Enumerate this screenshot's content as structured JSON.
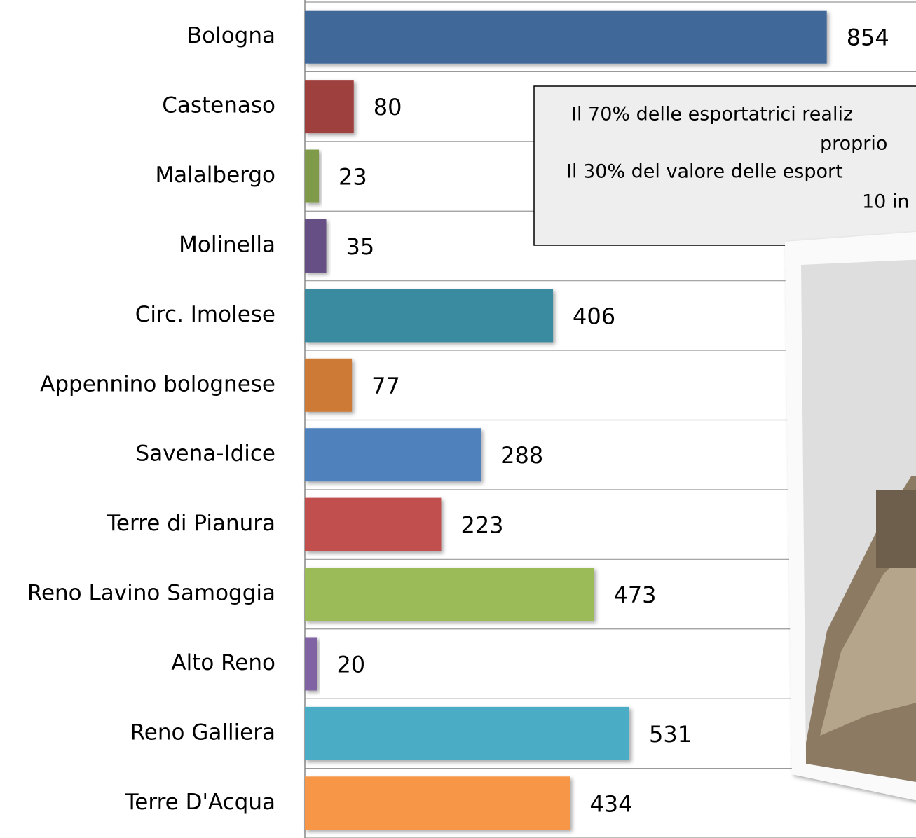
{
  "chart_data": {
    "type": "bar",
    "orientation": "horizontal",
    "categories": [
      "Bologna",
      "Castenaso",
      "Malalbergo",
      "Molinella",
      "Circ. Imolese",
      "Appennino bolognese",
      "Savena-Idice",
      "Terre di Pianura",
      "Reno Lavino Samoggia",
      "Alto Reno",
      "Reno Galliera",
      "Terre D'Acqua"
    ],
    "values": [
      854,
      80,
      23,
      35,
      406,
      77,
      288,
      223,
      473,
      20,
      531,
      434
    ],
    "colors": [
      "#41699a",
      "#9e413e",
      "#7f9a48",
      "#664f84",
      "#3a8ba0",
      "#cc7a36",
      "#4f81bd",
      "#c0504d",
      "#9bbb59",
      "#8064a2",
      "#4bacc6",
      "#f79646"
    ],
    "xlim": [
      0,
      1000
    ],
    "annotation": [
      "Il 70% delle esportatrici realiz",
      "proprio",
      "Il 30% del valore delle esport",
      "10 in"
    ]
  }
}
